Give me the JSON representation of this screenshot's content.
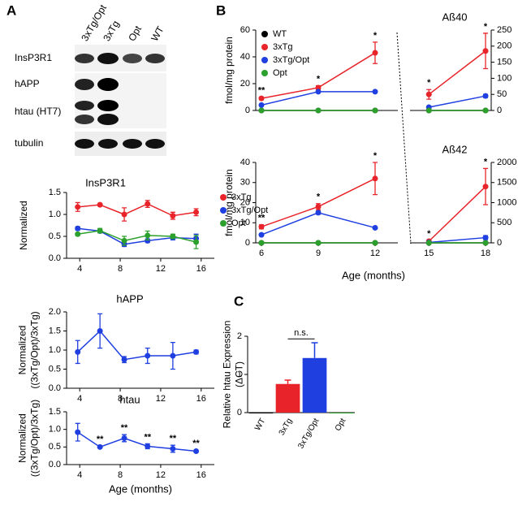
{
  "panel_labels": [
    "A",
    "B",
    "C"
  ],
  "blot": {
    "columns": [
      "3xTg/Opt",
      "3xTg",
      "Opt",
      "WT"
    ],
    "rows": [
      "InsP3R1",
      "hAPP",
      "htau (HT7)",
      "tubulin"
    ]
  },
  "chart_data": [
    {
      "type": "line",
      "title": "InsP3R1",
      "ylabel": [
        "Normalized"
      ],
      "x": [
        3.8,
        6,
        8.4,
        10.7,
        13.2,
        15.5
      ],
      "xlim": [
        2.7,
        17.3
      ],
      "xticks": [
        4,
        8,
        12,
        16
      ],
      "ylim": [
        0,
        1.5
      ],
      "yticks": [
        {
          "value": 0,
          "label": "0.0"
        },
        0.5,
        {
          "value": 1,
          "label": "1.0"
        },
        1.5
      ],
      "legend": "right",
      "series": [
        {
          "name": "3xTg",
          "color": "#e8242a",
          "values": [
            1.17,
            1.22,
            1.0,
            1.24,
            0.97,
            1.05
          ],
          "errors": [
            0.1,
            0.02,
            0.15,
            0.08,
            0.08,
            0.08
          ]
        },
        {
          "name": "3xTg/Opt",
          "color": "#1f3fe0",
          "values": [
            0.68,
            0.62,
            0.32,
            0.4,
            0.47,
            0.45
          ],
          "errors": [
            0.04,
            0.03,
            0.05,
            0.04,
            0.05,
            0.1
          ]
        },
        {
          "name": "Opt",
          "color": "#2ca02c",
          "values": [
            0.55,
            0.63,
            0.4,
            0.52,
            0.5,
            0.37
          ],
          "errors": [
            0.03,
            0.05,
            0.1,
            0.1,
            0.05,
            0.15
          ]
        }
      ]
    },
    {
      "type": "line",
      "title": "hAPP",
      "ylabel": [
        "Normalized",
        "((3xTg/Opt)/3xTg)"
      ],
      "x": [
        3.8,
        6,
        8.4,
        10.7,
        13.2,
        15.5
      ],
      "xlim": [
        2.7,
        17.3
      ],
      "xticks": [
        4,
        8,
        12,
        16
      ],
      "ylim": [
        0,
        2
      ],
      "yticks": [
        {
          "value": 0,
          "label": "0.0"
        },
        0.5,
        {
          "value": 1,
          "label": "1.0"
        },
        1.5,
        {
          "value": 2,
          "label": "2.0"
        }
      ],
      "series": [
        {
          "color": "#1f3fe0",
          "values": [
            0.95,
            1.5,
            0.75,
            0.85,
            0.85,
            0.95
          ],
          "errors": [
            0.3,
            0.45,
            0.08,
            0.2,
            0.35,
            0.05
          ]
        }
      ]
    },
    {
      "type": "line",
      "title": "htau",
      "ylabel": [
        "Normalized",
        "((3xTg/Opt)/3xTg)"
      ],
      "xlabel": "Age (months)",
      "x": [
        3.8,
        6,
        8.4,
        10.7,
        13.2,
        15.5
      ],
      "xlim": [
        2.7,
        17.3
      ],
      "xticks": [
        4,
        8,
        12,
        16
      ],
      "ylim": [
        0,
        1.5
      ],
      "yticks": [
        {
          "value": 0,
          "label": "0.0"
        },
        0.5,
        {
          "value": 1,
          "label": "1.0"
        },
        1.5
      ],
      "series": [
        {
          "color": "#1f3fe0",
          "values": [
            0.92,
            0.5,
            0.75,
            0.52,
            0.45,
            0.38
          ],
          "errors": [
            0.25,
            0.03,
            0.1,
            0.07,
            0.1,
            0.03
          ],
          "significance": [
            null,
            "**",
            "**",
            "**",
            "**",
            "**"
          ]
        }
      ]
    },
    {
      "type": "line",
      "title": "Aß40",
      "ylabel": [
        "fmol/mg protein"
      ],
      "x": [
        6,
        9,
        12
      ],
      "xlim": [
        5.7,
        13.2
      ],
      "ylim": [
        0,
        60
      ],
      "yticks": [
        0,
        20,
        40,
        60
      ],
      "legend": "upper left",
      "series": [
        {
          "name": "WT",
          "color": "#000000",
          "values": [
            0,
            0,
            0
          ]
        },
        {
          "name": "3xTg",
          "color": "#e8242a",
          "values": [
            9,
            17,
            43
          ],
          "errors": [
            1,
            1.5,
            8
          ],
          "significance": [
            "**",
            "*",
            "*"
          ]
        },
        {
          "name": "3xTg/Opt",
          "color": "#1f3fe0",
          "values": [
            4,
            14,
            14
          ],
          "errors": [
            0.5,
            0.5,
            0.5
          ]
        },
        {
          "name": "Opt",
          "color": "#2ca02c",
          "values": [
            0,
            0,
            0
          ]
        }
      ]
    },
    {
      "type": "line",
      "x": [
        15,
        18
      ],
      "xlim": [
        14,
        18.3
      ],
      "y2lim": [
        0,
        250
      ],
      "y2ticks": [
        0,
        50,
        100,
        150,
        200,
        250
      ],
      "series": [
        {
          "axis": "y2",
          "color": "#000000",
          "values": [
            0,
            0
          ]
        },
        {
          "axis": "y2",
          "color": "#e8242a",
          "values": [
            50,
            185
          ],
          "errors": [
            15,
            55
          ],
          "significance": [
            "*",
            "*"
          ]
        },
        {
          "axis": "y2",
          "color": "#1f3fe0",
          "values": [
            10,
            45
          ],
          "errors": [
            3,
            5
          ]
        },
        {
          "axis": "y2",
          "color": "#2ca02c",
          "values": [
            0,
            0
          ]
        }
      ]
    },
    {
      "type": "line",
      "title": "Aß42",
      "ylabel": [
        "fmol/mg protein"
      ],
      "xlabel": "Age (months)",
      "x": [
        6,
        9,
        12
      ],
      "xlim": [
        5.7,
        13.2
      ],
      "xticks": [
        6,
        9,
        12
      ],
      "ylim": [
        0,
        40
      ],
      "yticks": [
        0,
        10,
        20,
        30,
        40
      ],
      "series": [
        {
          "color": "#000000",
          "values": [
            0,
            0,
            0
          ]
        },
        {
          "color": "#e8242a",
          "values": [
            8,
            18,
            32
          ],
          "errors": [
            1,
            1.5,
            8
          ],
          "significance": [
            "**",
            "*",
            "*"
          ]
        },
        {
          "color": "#1f3fe0",
          "values": [
            4,
            15,
            7.5
          ],
          "errors": [
            0.5,
            0.8,
            0.5
          ]
        },
        {
          "color": "#2ca02c",
          "values": [
            0,
            0,
            0
          ]
        }
      ]
    },
    {
      "type": "line",
      "x": [
        15,
        18
      ],
      "xlim": [
        14,
        18.3
      ],
      "xticks": [
        15,
        18
      ],
      "y2lim": [
        0,
        2000
      ],
      "y2ticks": [
        0,
        500,
        1000,
        1500,
        2000
      ],
      "series": [
        {
          "axis": "y2",
          "color": "#000000",
          "values": [
            0,
            0
          ]
        },
        {
          "axis": "y2",
          "color": "#e8242a",
          "values": [
            40,
            1400
          ],
          "errors": [
            20,
            450
          ],
          "significance": [
            "*",
            "*"
          ]
        },
        {
          "axis": "y2",
          "color": "#1f3fe0",
          "values": [
            10,
            130
          ],
          "errors": [
            5,
            50
          ]
        },
        {
          "axis": "y2",
          "color": "#2ca02c",
          "values": [
            0,
            0
          ]
        }
      ]
    },
    {
      "type": "bar",
      "ylabel": [
        "Relative htau Expression",
        "(ΔCT)"
      ],
      "categories": [
        "WT",
        "3xTg",
        "3xTg/Opt",
        "Opt"
      ],
      "values": [
        0,
        0.75,
        1.43,
        0
      ],
      "errors": [
        0,
        0.1,
        0.4,
        0
      ],
      "colors": [
        "#000000",
        "#e8242a",
        "#1f3fe0",
        "#2ca02c"
      ],
      "ylim": [
        0,
        2
      ],
      "yticks": [
        0,
        1,
        2
      ],
      "annotation": "n.s."
    }
  ]
}
